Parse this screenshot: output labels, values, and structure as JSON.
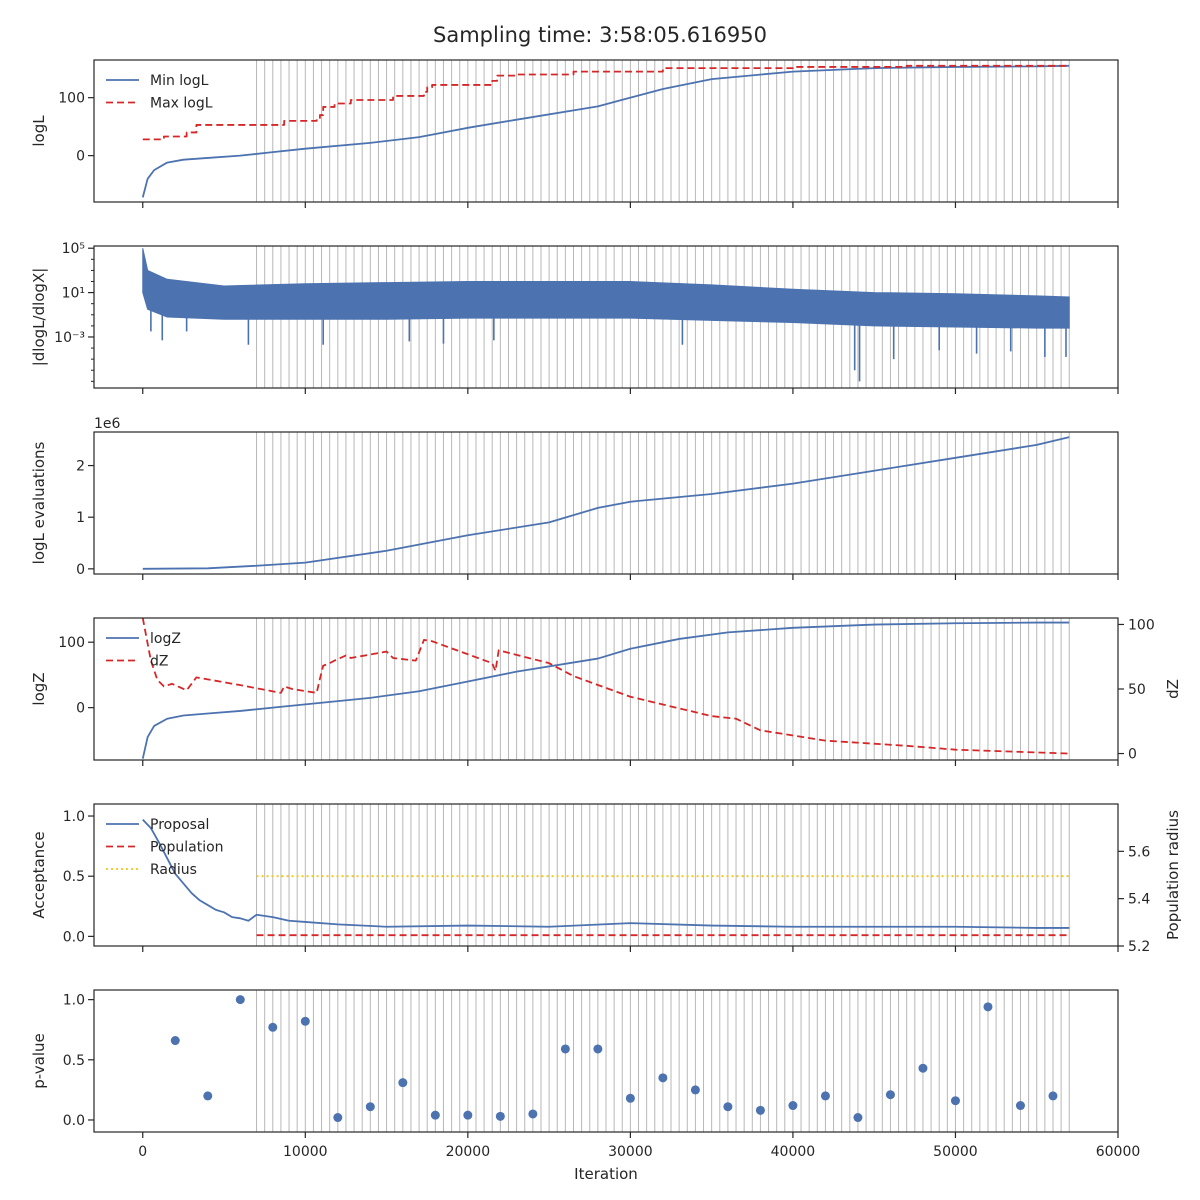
{
  "figure": {
    "title": "Sampling time: 3:58:05.616950",
    "x_label": "Iteration",
    "x_ticks": [
      "0",
      "10000",
      "20000",
      "30000",
      "40000",
      "50000",
      "60000"
    ]
  },
  "colors": {
    "blue": "#4c72b0",
    "red": "#d62728",
    "yellow": "#f5c518",
    "vline": "#b8b8b8",
    "axis": "#262626"
  },
  "chart_data": [
    {
      "type": "line",
      "ylabel": "logL",
      "xlim": [
        -3000,
        60000
      ],
      "ylim": [
        -80,
        165
      ],
      "yticks": [
        0,
        100
      ],
      "ytick_labels": [
        "0",
        "100"
      ],
      "legend": {
        "placement": "upper-left",
        "entries": [
          "Min logL",
          "Max logL"
        ]
      },
      "vlines": {
        "start": 7000,
        "end": 57000,
        "step": 500
      },
      "series": [
        {
          "name": "Min logL",
          "color": "blue",
          "style": "solid",
          "x": [
            0,
            300,
            700,
            1500,
            2500,
            4000,
            6000,
            8000,
            10000,
            14000,
            17000,
            20000,
            23000,
            28000,
            30000,
            32000,
            35000,
            40000,
            45000,
            50000,
            55000,
            57000
          ],
          "y": [
            -72,
            -40,
            -25,
            -12,
            -7,
            -4,
            0,
            6,
            12,
            22,
            32,
            48,
            62,
            85,
            100,
            115,
            132,
            145,
            151,
            153,
            154,
            155
          ]
        },
        {
          "name": "Max logL",
          "color": "red",
          "style": "dashed",
          "x": [
            0,
            1300,
            1300,
            2700,
            2700,
            3300,
            3300,
            8700,
            8700,
            10700,
            10700,
            10900,
            10900,
            11100,
            11100,
            11800,
            11800,
            12800,
            12800,
            15400,
            15400,
            17300,
            17300,
            17500,
            17500,
            17800,
            17800,
            21500,
            21500,
            21800,
            21800,
            23000,
            23000,
            26500,
            26500,
            32000,
            32000,
            40000,
            40000,
            47000,
            47000,
            57000
          ],
          "y": [
            28,
            28,
            33,
            33,
            40,
            40,
            53,
            53,
            60,
            60,
            65,
            65,
            70,
            70,
            84,
            84,
            90,
            90,
            96,
            96,
            103,
            103,
            110,
            110,
            118,
            118,
            122,
            122,
            129,
            129,
            138,
            138,
            140,
            140,
            145,
            145,
            151,
            151,
            153,
            153,
            155,
            155
          ]
        }
      ]
    },
    {
      "type": "line",
      "ylabel": "|dlogL/dlogX|",
      "yscale": "log",
      "xlim": [
        -3000,
        60000
      ],
      "ylim": [
        -7.6,
        5.2
      ],
      "yticks": [
        5,
        1,
        -3
      ],
      "ytick_labels": [
        "10⁵",
        "10¹",
        "10⁻³"
      ],
      "vlines": {
        "start": 7000,
        "end": 57000,
        "step": 500
      },
      "band": {
        "color": "blue",
        "x": [
          0,
          300,
          1500,
          5000,
          10000,
          15000,
          20000,
          25000,
          30000,
          35000,
          40000,
          45000,
          50000,
          55000,
          57000
        ],
        "upper_log10": [
          5.0,
          3.0,
          2.2,
          1.6,
          1.8,
          1.9,
          2.0,
          2.0,
          2.0,
          1.7,
          1.3,
          1.0,
          0.9,
          0.7,
          0.6
        ],
        "lower_log10": [
          1.0,
          -0.5,
          -1.2,
          -1.4,
          -1.4,
          -1.4,
          -1.3,
          -1.3,
          -1.3,
          -1.5,
          -1.7,
          -2.0,
          -2.1,
          -2.2,
          -2.2
        ]
      },
      "spikes": {
        "x": [
          500,
          1200,
          2700,
          6500,
          11100,
          16400,
          18500,
          21600,
          33200,
          43800,
          44100,
          46200,
          49000,
          51300,
          53400,
          55500,
          56800
        ],
        "log10_min": [
          -2.5,
          -3.3,
          -2.5,
          -3.7,
          -3.7,
          -3.4,
          -3.6,
          -3.3,
          -3.7,
          -6.0,
          -7.0,
          -5.0,
          -4.2,
          -4.5,
          -4.3,
          -4.8,
          -4.8
        ]
      }
    },
    {
      "type": "line",
      "ylabel": "logL evaluations",
      "y_multiplier": "1e6",
      "xlim": [
        -3000,
        60000
      ],
      "ylim": [
        -0.1,
        2.65
      ],
      "yticks": [
        0,
        1,
        2
      ],
      "ytick_labels": [
        "0",
        "1",
        "2"
      ],
      "vlines": {
        "start": 7000,
        "end": 57000,
        "step": 500
      },
      "series": [
        {
          "name": "",
          "color": "blue",
          "style": "solid",
          "x": [
            0,
            4000,
            7000,
            10000,
            15000,
            20000,
            25000,
            28000,
            30000,
            35000,
            40000,
            45000,
            50000,
            55000,
            57000
          ],
          "y": [
            0,
            0.01,
            0.06,
            0.12,
            0.35,
            0.65,
            0.9,
            1.18,
            1.3,
            1.45,
            1.65,
            1.9,
            2.15,
            2.4,
            2.55
          ]
        }
      ]
    },
    {
      "type": "line",
      "ylabel": "logZ",
      "ylabel_right": "dZ",
      "xlim": [
        -3000,
        60000
      ],
      "ylim": [
        -80,
        137
      ],
      "yticks": [
        0,
        100
      ],
      "ytick_labels": [
        "0",
        "100"
      ],
      "ylim_right": [
        -5,
        105
      ],
      "yticks_right": [
        0,
        50,
        100
      ],
      "ytick_labels_right": [
        "0",
        "50",
        "100"
      ],
      "legend": {
        "placement": "upper-left",
        "entries": [
          "logZ",
          "dZ"
        ]
      },
      "vlines": {
        "start": 7000,
        "end": 57000,
        "step": 500
      },
      "series": [
        {
          "name": "logZ",
          "color": "blue",
          "style": "solid",
          "axis": "left",
          "x": [
            0,
            300,
            700,
            1500,
            2500,
            4000,
            6000,
            8000,
            10000,
            14000,
            17000,
            20000,
            23000,
            28000,
            30000,
            33000,
            36000,
            40000,
            45000,
            50000,
            55000,
            57000
          ],
          "y": [
            -78,
            -45,
            -28,
            -17,
            -12,
            -9,
            -5,
            0,
            5,
            15,
            25,
            40,
            55,
            75,
            90,
            105,
            115,
            122,
            127,
            129,
            130,
            130
          ]
        },
        {
          "name": "dZ",
          "color": "red",
          "style": "dashed",
          "axis": "right",
          "x": [
            0,
            500,
            900,
            1300,
            1800,
            2700,
            3300,
            6000,
            8500,
            8700,
            9200,
            10700,
            10900,
            11100,
            11500,
            11800,
            12500,
            12800,
            15000,
            15400,
            16800,
            17300,
            17800,
            21500,
            21700,
            21900,
            25000,
            26500,
            30000,
            32000,
            35000,
            36500,
            38000,
            40000,
            42000,
            47000,
            50000,
            57000
          ],
          "y": [
            105,
            72,
            57,
            52,
            54,
            49,
            59,
            53,
            47,
            52,
            50,
            47,
            58,
            68,
            70,
            72,
            76,
            74,
            79,
            74,
            72,
            88,
            87,
            70,
            64,
            80,
            70,
            60,
            44,
            38,
            29,
            27,
            18,
            14,
            10,
            6,
            3,
            0
          ]
        }
      ]
    },
    {
      "type": "line",
      "ylabel": "Acceptance",
      "ylabel_right": "Population radius",
      "xlim": [
        -3000,
        60000
      ],
      "ylim": [
        -0.08,
        1.1
      ],
      "yticks": [
        0.0,
        0.5,
        1.0
      ],
      "ytick_labels": [
        "0.0",
        "0.5",
        "1.0"
      ],
      "ylim_right": [
        5.2,
        5.8
      ],
      "yticks_right": [
        5.2,
        5.4,
        5.6
      ],
      "ytick_labels_right": [
        "5.2",
        "5.4",
        "5.6"
      ],
      "legend": {
        "placement": "upper-left",
        "entries": [
          "Proposal",
          "Population",
          "Radius"
        ]
      },
      "vlines": {
        "start": 7000,
        "end": 57000,
        "step": 500
      },
      "series": [
        {
          "name": "Proposal",
          "color": "blue",
          "style": "solid",
          "axis": "left",
          "x": [
            0,
            500,
            1000,
            1500,
            2000,
            2500,
            3000,
            3500,
            4000,
            4500,
            5000,
            5500,
            6000,
            6500,
            7000,
            8000,
            9000,
            10000,
            12000,
            15000,
            20000,
            25000,
            30000,
            35000,
            40000,
            45000,
            50000,
            55000,
            57000
          ],
          "y": [
            0.97,
            0.9,
            0.78,
            0.65,
            0.52,
            0.44,
            0.36,
            0.3,
            0.26,
            0.22,
            0.2,
            0.16,
            0.15,
            0.13,
            0.18,
            0.16,
            0.13,
            0.12,
            0.1,
            0.08,
            0.09,
            0.08,
            0.11,
            0.09,
            0.08,
            0.08,
            0.08,
            0.07,
            0.07
          ]
        },
        {
          "name": "Population",
          "color": "red",
          "style": "dashed",
          "axis": "left",
          "x": [
            7000,
            57000
          ],
          "y": [
            0.01,
            0.01
          ]
        },
        {
          "name": "Radius",
          "color": "yellow",
          "style": "dotted",
          "axis": "left",
          "x": [
            7000,
            57000
          ],
          "y": [
            0.5,
            0.5
          ]
        }
      ]
    },
    {
      "type": "scatter",
      "ylabel": "p-value",
      "xlim": [
        -3000,
        60000
      ],
      "ylim": [
        -0.1,
        1.08
      ],
      "yticks": [
        0.0,
        0.5,
        1.0
      ],
      "ytick_labels": [
        "0.0",
        "0.5",
        "1.0"
      ],
      "vlines": {
        "start": 7000,
        "end": 57000,
        "step": 500
      },
      "series": [
        {
          "name": "",
          "color": "blue",
          "x": [
            2000,
            4000,
            6000,
            8000,
            10000,
            12000,
            14000,
            16000,
            18000,
            20000,
            22000,
            24000,
            26000,
            28000,
            30000,
            32000,
            34000,
            36000,
            38000,
            40000,
            42000,
            44000,
            46000,
            48000,
            50000,
            52000,
            54000,
            56000
          ],
          "y": [
            0.66,
            0.2,
            1.0,
            0.77,
            0.82,
            0.02,
            0.11,
            0.31,
            0.04,
            0.04,
            0.03,
            0.05,
            0.59,
            0.59,
            0.18,
            0.35,
            0.25,
            0.11,
            0.08,
            0.12,
            0.2,
            0.02,
            0.21,
            0.43,
            0.16,
            0.94,
            0.12,
            0.2
          ]
        }
      ]
    }
  ]
}
